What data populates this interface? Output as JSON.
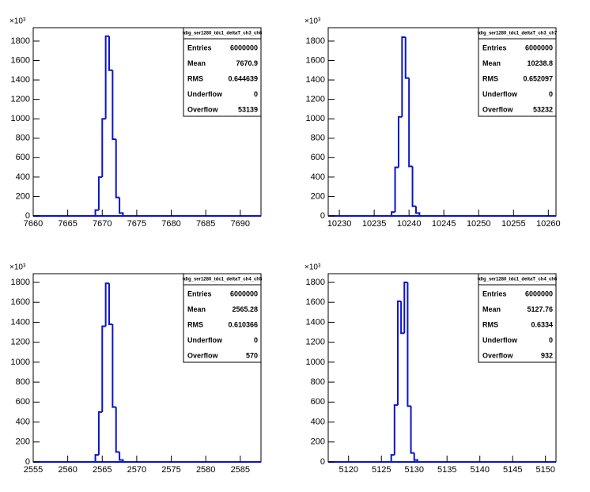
{
  "chart_data": [
    {
      "type": "histogram",
      "title": "tdig_ser1280_tdc1_deltaT_ch3_ch6",
      "y_multiplier": "×10³",
      "color": "#0a14c8",
      "bins": [
        7669,
        7669.5,
        7670,
        7670.5,
        7671,
        7671.5,
        7672,
        7672.5,
        7673
      ],
      "counts": [
        60,
        400,
        1000,
        1850,
        1500,
        790,
        190,
        30
      ],
      "xlim": [
        7660,
        7693
      ],
      "xticks": [
        7660,
        7665,
        7670,
        7675,
        7680,
        7685,
        7690
      ],
      "ylim": [
        0,
        1938
      ],
      "yticks": [
        0,
        200,
        400,
        600,
        800,
        1000,
        1200,
        1400,
        1600,
        1800
      ],
      "stats": [
        {
          "label": "Entries",
          "value": 6000000
        },
        {
          "label": "Mean",
          "value": 7670.9
        },
        {
          "label": "RMS",
          "value": 0.644639
        },
        {
          "label": "Underflow",
          "value": 0
        },
        {
          "label": "Overflow",
          "value": 53139
        }
      ]
    },
    {
      "type": "histogram",
      "title": "tdig_ser1280_tdc1_deltaT_ch3_ch7",
      "y_multiplier": "×10³",
      "color": "#0a14c8",
      "bins": [
        10237.5,
        10238,
        10238.5,
        10239,
        10239.5,
        10240,
        10240.5,
        10241,
        10241.5
      ],
      "counts": [
        40,
        500,
        1020,
        1840,
        1420,
        510,
        100,
        30
      ],
      "xlim": [
        10228.4,
        10261.1
      ],
      "xticks": [
        10230,
        10235,
        10240,
        10245,
        10250,
        10255,
        10260
      ],
      "ylim": [
        0,
        1938
      ],
      "yticks": [
        0,
        200,
        400,
        600,
        800,
        1000,
        1200,
        1400,
        1600,
        1800
      ],
      "stats": [
        {
          "label": "Entries",
          "value": 6000000
        },
        {
          "label": "Mean",
          "value": 10238.8
        },
        {
          "label": "RMS",
          "value": 0.652097
        },
        {
          "label": "Underflow",
          "value": 0
        },
        {
          "label": "Overflow",
          "value": 53232
        }
      ]
    },
    {
      "type": "histogram",
      "title": "tdig_ser1280_tdc1_deltaT_ch4_ch5",
      "y_multiplier": "×10³",
      "color": "#0a14c8",
      "bins": [
        2564,
        2564.5,
        2565,
        2565.5,
        2566,
        2566.5,
        2567,
        2567.5,
        2568
      ],
      "counts": [
        70,
        500,
        1360,
        1790,
        1380,
        550,
        100,
        20
      ],
      "xlim": [
        2555,
        2588
      ],
      "xticks": [
        2555,
        2560,
        2565,
        2570,
        2575,
        2580,
        2585
      ],
      "ylim": [
        0,
        1887
      ],
      "yticks": [
        0,
        200,
        400,
        600,
        800,
        1000,
        1200,
        1400,
        1600,
        1800
      ],
      "stats": [
        {
          "label": "Entries",
          "value": 6000000
        },
        {
          "label": "Mean",
          "value": 2565.28
        },
        {
          "label": "RMS",
          "value": 0.610366
        },
        {
          "label": "Underflow",
          "value": 0
        },
        {
          "label": "Overflow",
          "value": 570
        }
      ]
    },
    {
      "type": "histogram",
      "title": "tdig_ser1280_tdc1_deltaT_ch4_ch6",
      "y_multiplier": "×10³",
      "color": "#0a14c8",
      "bins": [
        5126.5,
        5127,
        5127.5,
        5128,
        5128.5,
        5129,
        5129.5,
        5130,
        5130.5
      ],
      "counts": [
        70,
        570,
        1610,
        1290,
        1800,
        560,
        90,
        20
      ],
      "xlim": [
        5116.9,
        5151.6
      ],
      "xticks": [
        5120,
        5125,
        5130,
        5135,
        5140,
        5145,
        5150
      ],
      "ylim": [
        0,
        1887
      ],
      "yticks": [
        0,
        200,
        400,
        600,
        800,
        1000,
        1200,
        1400,
        1600,
        1800
      ],
      "stats": [
        {
          "label": "Entries",
          "value": 6000000
        },
        {
          "label": "Mean",
          "value": 5127.76
        },
        {
          "label": "RMS",
          "value": 0.6334
        },
        {
          "label": "Underflow",
          "value": 0
        },
        {
          "label": "Overflow",
          "value": 932
        }
      ]
    }
  ]
}
